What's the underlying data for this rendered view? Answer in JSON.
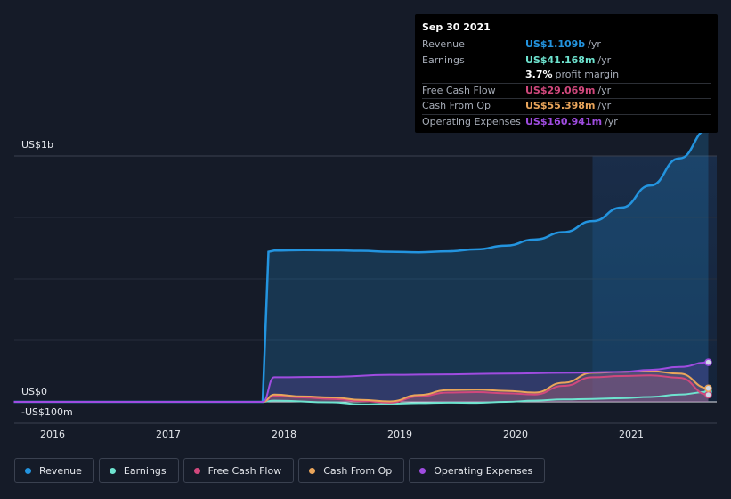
{
  "tooltip": {
    "date": "Sep 30 2021",
    "rows": [
      {
        "label": "Revenue",
        "value": "US$1.109b",
        "unit": "/yr",
        "color": "#2394df"
      },
      {
        "label": "Earnings",
        "value": "US$41.168m",
        "unit": "/yr",
        "color": "#6ee3cf"
      },
      {
        "label": "",
        "value": "3.7%",
        "unit": "profit margin",
        "color": "#ffffff"
      },
      {
        "label": "Free Cash Flow",
        "value": "US$29.069m",
        "unit": "/yr",
        "color": "#d1487d"
      },
      {
        "label": "Cash From Op",
        "value": "US$55.398m",
        "unit": "/yr",
        "color": "#e9a55b"
      },
      {
        "label": "Operating Expenses",
        "value": "US$160.941m",
        "unit": "/yr",
        "color": "#9f4ce0"
      }
    ]
  },
  "legend": [
    {
      "label": "Revenue",
      "color": "#2394df"
    },
    {
      "label": "Earnings",
      "color": "#6ee3cf"
    },
    {
      "label": "Free Cash Flow",
      "color": "#d1487d"
    },
    {
      "label": "Cash From Op",
      "color": "#e9a55b"
    },
    {
      "label": "Operating Expenses",
      "color": "#9f4ce0"
    }
  ],
  "chart_data": {
    "type": "area",
    "y_axis_labels": [
      "US$1b",
      "US$0",
      "-US$100m"
    ],
    "x_tick_labels": [
      "2016",
      "2017",
      "2018",
      "2019",
      "2020",
      "2021"
    ],
    "ylim": [
      -100,
      1200
    ],
    "grid": true,
    "highlight_start": 2020.75,
    "series": [
      {
        "name": "Revenue",
        "color": "#2394df",
        "fill": true,
        "points": [
          [
            2015.75,
            0
          ],
          [
            2017.9,
            0
          ],
          [
            2017.95,
            610
          ],
          [
            2018.0,
            615
          ],
          [
            2018.25,
            617
          ],
          [
            2018.5,
            616
          ],
          [
            2018.75,
            614
          ],
          [
            2019.0,
            610
          ],
          [
            2019.25,
            608
          ],
          [
            2019.5,
            612
          ],
          [
            2019.75,
            620
          ],
          [
            2020.0,
            635
          ],
          [
            2020.25,
            660
          ],
          [
            2020.5,
            690
          ],
          [
            2020.75,
            735
          ],
          [
            2021.0,
            790
          ],
          [
            2021.25,
            880
          ],
          [
            2021.5,
            990
          ],
          [
            2021.75,
            1109
          ]
        ]
      },
      {
        "name": "Earnings",
        "color": "#6ee3cf",
        "fill": false,
        "points": [
          [
            2015.75,
            0
          ],
          [
            2017.9,
            0
          ],
          [
            2018.0,
            5
          ],
          [
            2018.5,
            -2
          ],
          [
            2018.75,
            -10
          ],
          [
            2019.0,
            -8
          ],
          [
            2019.25,
            -5
          ],
          [
            2019.5,
            -3
          ],
          [
            2019.75,
            -4
          ],
          [
            2020.0,
            0
          ],
          [
            2020.25,
            5
          ],
          [
            2020.5,
            10
          ],
          [
            2020.75,
            12
          ],
          [
            2021.0,
            15
          ],
          [
            2021.25,
            20
          ],
          [
            2021.5,
            30
          ],
          [
            2021.75,
            41.2
          ]
        ]
      },
      {
        "name": "Free Cash Flow",
        "color": "#d1487d",
        "fill": true,
        "points": [
          [
            2015.75,
            0
          ],
          [
            2017.9,
            0
          ],
          [
            2018.0,
            25
          ],
          [
            2018.25,
            18
          ],
          [
            2018.5,
            12
          ],
          [
            2018.75,
            3
          ],
          [
            2019.0,
            -3
          ],
          [
            2019.25,
            22
          ],
          [
            2019.5,
            38
          ],
          [
            2019.75,
            40
          ],
          [
            2020.0,
            35
          ],
          [
            2020.25,
            30
          ],
          [
            2020.5,
            65
          ],
          [
            2020.75,
            100
          ],
          [
            2021.0,
            105
          ],
          [
            2021.25,
            108
          ],
          [
            2021.5,
            98
          ],
          [
            2021.75,
            29.1
          ]
        ]
      },
      {
        "name": "Cash From Op",
        "color": "#e9a55b",
        "fill": true,
        "points": [
          [
            2015.75,
            0
          ],
          [
            2017.9,
            0
          ],
          [
            2018.0,
            30
          ],
          [
            2018.25,
            22
          ],
          [
            2018.5,
            18
          ],
          [
            2018.75,
            8
          ],
          [
            2019.0,
            2
          ],
          [
            2019.25,
            28
          ],
          [
            2019.5,
            48
          ],
          [
            2019.75,
            50
          ],
          [
            2020.0,
            45
          ],
          [
            2020.25,
            38
          ],
          [
            2020.5,
            78
          ],
          [
            2020.75,
            118
          ],
          [
            2021.0,
            122
          ],
          [
            2021.25,
            125
          ],
          [
            2021.5,
            115
          ],
          [
            2021.75,
            55.4
          ]
        ]
      },
      {
        "name": "Operating Expenses",
        "color": "#9f4ce0",
        "fill": true,
        "points": [
          [
            2015.75,
            0
          ],
          [
            2017.9,
            0
          ],
          [
            2018.0,
            100
          ],
          [
            2018.5,
            102
          ],
          [
            2019.0,
            110
          ],
          [
            2019.5,
            112
          ],
          [
            2020.0,
            115
          ],
          [
            2020.5,
            118
          ],
          [
            2021.0,
            122
          ],
          [
            2021.25,
            130
          ],
          [
            2021.5,
            142
          ],
          [
            2021.75,
            160.9
          ]
        ]
      }
    ]
  }
}
